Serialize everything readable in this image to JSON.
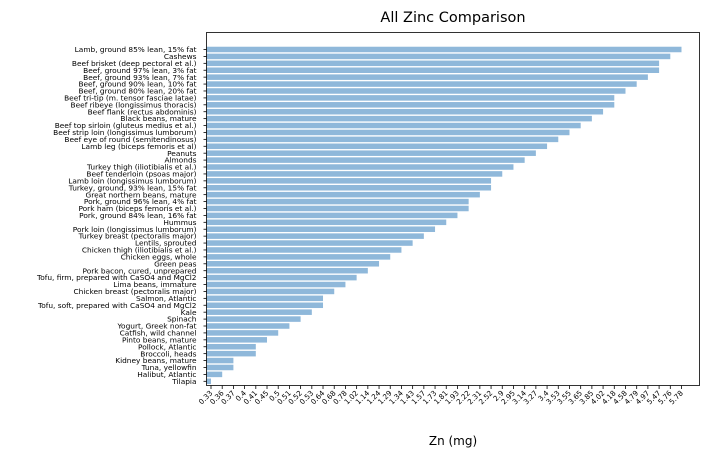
{
  "chart_data": {
    "type": "bar",
    "orientation": "horizontal",
    "title": "All Zinc Comparison",
    "xlabel": "Zn (mg)",
    "ylabel": "",
    "bar_color": "#8fb8da",
    "categories": [
      "Lamb, ground 85% lean, 15% fat",
      "Cashews",
      "Beef brisket (deep pectoral et al.)",
      "Beef, ground 97% lean, 3% fat",
      "Beef, ground 93% lean, 7% fat",
      "Beef, ground 90% lean, 10% fat",
      "Beef, ground 80% lean, 20% fat",
      "Beef tri-tip (m. tensor fasciae latae)",
      "Beef ribeye (longissimus thoracis)",
      "Beef flank (rectus abdominis)",
      "Black beans, mature",
      "Beef top sirloin (gluteus medius et al.)",
      "Beef strip loin (longissimus lumborum)",
      "Beef eye of round (semitendinosus)",
      "Lamb leg (biceps femoris et al)",
      "Peanuts",
      "Almonds",
      "Turkey thigh (iliotibialis et al.)",
      "Beef tenderloin (psoas major)",
      "Lamb loin (longissimus lumborum)",
      "Turkey, ground, 93% lean, 15% fat",
      "Great northern beans, mature",
      "Pork, ground 96% lean, 4% fat",
      "Pork ham (biceps femoris et al.)",
      "Pork, ground 84% lean, 16% fat",
      "Hummus",
      "Pork loin (longissimus lumborum)",
      "Turkey breast (pectoralis major)",
      "Lentils, sprouted",
      "Chicken thigh (iliotibialis et al.)",
      "Chicken eggs, whole",
      "Green peas",
      "Pork bacon, cured, unprepared",
      "Tofu, firm, prepared with CaSO4 and MgCl2",
      "Lima beans, immature",
      "Chicken breast (pectoralis major)",
      "Salmon, Atlantic",
      "Tofu, soft, prepared with CaSO4 and MgCl2",
      "Kale",
      "Spinach",
      "Yogurt, Greek non-fat",
      "Catfish, wild channel",
      "Pinto beans, mature",
      "Pollock, Atlantic",
      "Broccoli, heads",
      "Kidney beans, mature",
      "Tuna, yellowfin",
      "Halibut, Atlantic",
      "Tilapia"
    ],
    "values": [
      5.78,
      5.76,
      5.47,
      5.47,
      4.97,
      4.79,
      4.58,
      4.18,
      4.18,
      4.02,
      3.85,
      3.65,
      3.55,
      3.53,
      3.4,
      3.27,
      3.14,
      2.95,
      2.9,
      2.52,
      2.52,
      2.31,
      2.22,
      2.22,
      1.93,
      1.81,
      1.73,
      1.57,
      1.43,
      1.34,
      1.29,
      1.24,
      1.14,
      1.02,
      0.78,
      0.68,
      0.64,
      0.64,
      0.53,
      0.52,
      0.51,
      0.5,
      0.45,
      0.41,
      0.41,
      0.37,
      0.37,
      0.36,
      0.33
    ],
    "xticks": [
      "0.33",
      "0.36",
      "0.37",
      "0.4",
      "0.41",
      "0.45",
      "0.5",
      "0.51",
      "0.52",
      "0.53",
      "0.64",
      "0.68",
      "0.78",
      "1.02",
      "1.14",
      "1.24",
      "1.29",
      "1.34",
      "1.43",
      "1.57",
      "1.73",
      "1.81",
      "1.93",
      "2.22",
      "2.31",
      "2.52",
      "2.9",
      "2.95",
      "3.14",
      "3.27",
      "3.4",
      "3.53",
      "3.55",
      "3.65",
      "3.85",
      "4.02",
      "4.18",
      "4.58",
      "4.79",
      "4.97",
      "5.47",
      "5.76",
      "5.78"
    ],
    "xtick_suffix": " ",
    "grid": false,
    "legend": "none"
  }
}
